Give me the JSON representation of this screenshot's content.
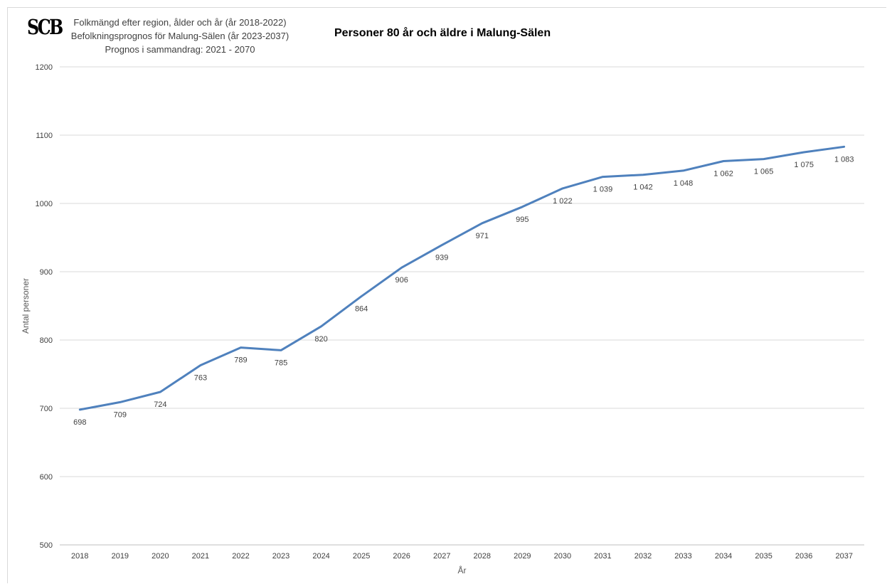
{
  "logo_text": "SCB",
  "source_lines": [
    "Folkmängd efter region, ålder och år (år 2018-2022)",
    "Befolkningsprognos för Malung-Sälen (år 2023-2037)",
    "Prognos i sammandrag: 2021 - 2070"
  ],
  "chart_data": {
    "type": "line",
    "title": "Personer 80 år och äldre i Malung-Sälen",
    "xlabel": "År",
    "ylabel": "Antal personer",
    "ylim": [
      500,
      1200
    ],
    "yticks": [
      500,
      600,
      700,
      800,
      900,
      1000,
      1100,
      1200
    ],
    "grid": true,
    "categories": [
      "2018",
      "2019",
      "2020",
      "2021",
      "2022",
      "2023",
      "2024",
      "2025",
      "2026",
      "2027",
      "2028",
      "2029",
      "2030",
      "2031",
      "2032",
      "2033",
      "2034",
      "2035",
      "2036",
      "2037"
    ],
    "series": [
      {
        "color": "#4f81bd",
        "values": [
          698,
          709,
          724,
          763,
          789,
          785,
          820,
          864,
          906,
          939,
          971,
          995,
          1022,
          1039,
          1042,
          1048,
          1062,
          1065,
          1075,
          1083
        ],
        "labels": [
          "698",
          "709",
          "724",
          "763",
          "789",
          "785",
          "820",
          "864",
          "906",
          "939",
          "971",
          "995",
          "1 022",
          "1 039",
          "1 042",
          "1 048",
          "1 062",
          "1 065",
          "1 075",
          "1 083"
        ]
      }
    ]
  }
}
